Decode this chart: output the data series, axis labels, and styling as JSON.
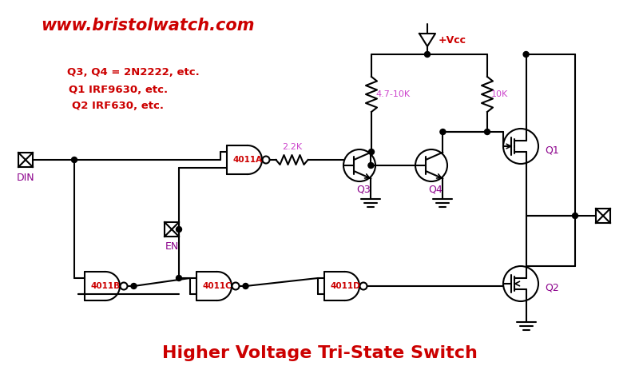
{
  "title": "Higher Voltage Tri-State Switch",
  "website": "www.bristolwatch.com",
  "bg_color": "#ffffff",
  "red_color": "#cc0000",
  "black_color": "#000000",
  "purple_color": "#8b008b",
  "magenta_color": "#cc44cc",
  "annotations": {
    "Q3_Q4": "Q3, Q4 = 2N2222, etc.",
    "Q1": "Q1 IRF9630, etc.",
    "Q2": "Q2 IRF630, etc."
  }
}
